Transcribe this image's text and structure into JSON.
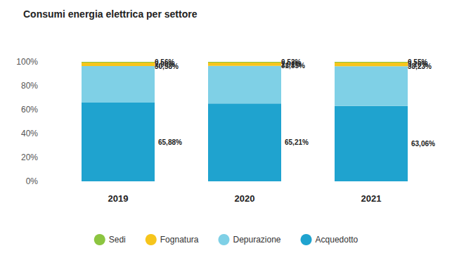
{
  "chart_data": {
    "type": "bar",
    "title": "Consumi energia elettrica per settore",
    "categories": [
      "2019",
      "2020",
      "2021"
    ],
    "series": [
      {
        "name": "Sedi",
        "color": "#8cc540",
        "values": [
          0.56,
          0.52,
          0.55
        ],
        "value_labels": [
          "0,56%",
          "0,52%",
          "0,55%"
        ]
      },
      {
        "name": "Fognatura",
        "color": "#f6c51c",
        "values": [
          2.98,
          2.92,
          3.16
        ],
        "value_labels": [
          "2,98%",
          "2,92%",
          "3,16%"
        ]
      },
      {
        "name": "Depurazione",
        "color": "#7fd0e6",
        "values": [
          30.58,
          31.35,
          33.23
        ],
        "value_labels": [
          "30,58%",
          "31,35%",
          "33,23%"
        ]
      },
      {
        "name": "Acquedotto",
        "color": "#1fa3cf",
        "values": [
          65.88,
          65.21,
          63.06
        ],
        "value_labels": [
          "65,88%",
          "65,21%",
          "63,06%"
        ]
      }
    ],
    "ylim": [
      0,
      100
    ],
    "yticks": [
      {
        "value": 0,
        "label": "0%"
      },
      {
        "value": 20,
        "label": "20%"
      },
      {
        "value": 40,
        "label": "40%"
      },
      {
        "value": 60,
        "label": "60%"
      },
      {
        "value": 80,
        "label": "80%"
      },
      {
        "value": 100,
        "label": "100%"
      }
    ],
    "stacked": true,
    "data_labels": true,
    "legend": "bottom",
    "grid": false
  }
}
